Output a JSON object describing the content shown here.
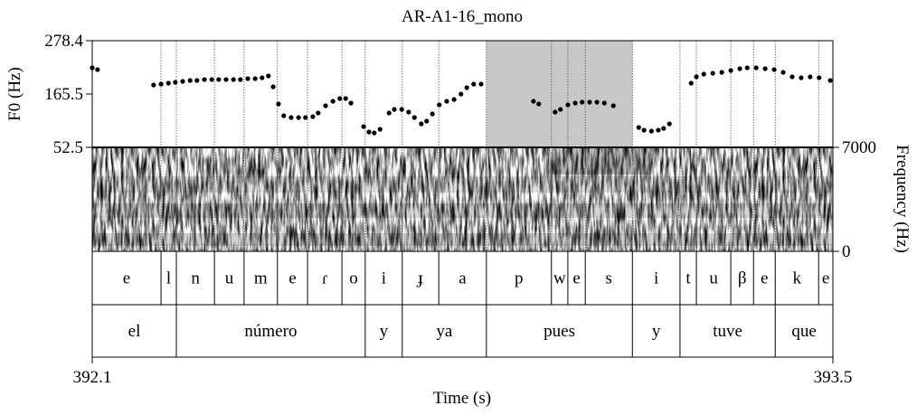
{
  "chart_data": {
    "type": "scatter",
    "title": "AR-A1-16_mono",
    "ylabel": "F0 (Hz)",
    "y2label": "Frequency (Hz)",
    "xlabel": "Time (s)",
    "xlim": [
      392.1,
      393.5
    ],
    "xticks": [
      392.1,
      393.5
    ],
    "ylim": [
      52.5,
      278.4
    ],
    "yticks": [
      52.5,
      165.5,
      278.4
    ],
    "y2lim": [
      0,
      7000
    ],
    "y2ticks": [
      0,
      7000
    ],
    "color": "#000000",
    "highlight": [
      392.845,
      393.121
    ],
    "x": [
      392.1,
      392.11,
      392.216,
      392.23,
      392.244,
      392.257,
      392.271,
      392.285,
      392.298,
      392.312,
      392.326,
      392.339,
      392.353,
      392.367,
      392.38,
      392.394,
      392.408,
      392.421,
      392.433,
      392.442,
      392.452,
      392.462,
      392.476,
      392.49,
      392.503,
      392.517,
      392.527,
      392.541,
      392.555,
      392.568,
      392.579,
      392.589,
      392.613,
      392.623,
      392.633,
      392.644,
      392.661,
      392.671,
      392.685,
      392.698,
      392.709,
      392.722,
      392.732,
      392.743,
      392.756,
      392.77,
      392.784,
      392.797,
      392.808,
      392.821,
      392.835,
      392.934,
      392.944,
      392.975,
      392.985,
      392.999,
      393.013,
      393.026,
      393.04,
      393.054,
      393.068,
      393.085,
      393.133,
      393.143,
      393.157,
      393.17,
      393.18,
      393.191,
      393.232,
      393.242,
      393.256,
      393.273,
      393.29,
      393.307,
      393.324,
      393.338,
      393.355,
      393.372,
      393.389,
      393.406,
      393.423,
      393.44,
      393.457,
      393.474,
      393.495
    ],
    "values": [
      221.0,
      217.1,
      184.6,
      186.5,
      188.4,
      190.3,
      192.3,
      194.2,
      194.2,
      196.1,
      196.1,
      196.1,
      196.1,
      196.1,
      196.1,
      198.0,
      198.0,
      199.9,
      203.7,
      180.8,
      144.4,
      119.5,
      115.7,
      115.7,
      115.7,
      117.6,
      125.2,
      140.6,
      150.1,
      155.9,
      155.9,
      146.3,
      96.5,
      85.0,
      83.1,
      90.8,
      125.2,
      132.9,
      132.9,
      127.2,
      115.7,
      102.3,
      108.0,
      123.3,
      142.5,
      150.1,
      154.0,
      165.4,
      178.9,
      186.5,
      186.5,
      150.1,
      144.4,
      127.2,
      132.9,
      142.5,
      146.3,
      148.2,
      148.2,
      148.2,
      146.3,
      140.6,
      94.6,
      88.9,
      87.0,
      88.9,
      92.7,
      102.3,
      188.4,
      201.8,
      207.6,
      209.5,
      211.4,
      215.2,
      219.1,
      221.0,
      221.0,
      219.1,
      217.1,
      211.4,
      201.8,
      199.9,
      201.8,
      199.9,
      194.2
    ],
    "tiers": [
      {
        "labels": [
          "e",
          "l",
          "n",
          "u",
          "m",
          "e",
          "ɾ",
          "o",
          "i",
          "ɟ",
          "a",
          "p",
          "w",
          "e",
          "s",
          "i",
          "t",
          "u",
          "β",
          "e",
          "k",
          "e"
        ],
        "boundaries": [
          392.1,
          392.23,
          392.259,
          392.331,
          392.387,
          392.45,
          392.507,
          392.572,
          392.616,
          392.686,
          392.755,
          392.845,
          392.968,
          392.999,
          393.032,
          393.121,
          393.211,
          393.242,
          393.307,
          393.35,
          393.391,
          393.473,
          393.5
        ]
      },
      {
        "labels": [
          "el",
          "número",
          "y",
          "ya",
          "pues",
          "y",
          "tuve",
          "que"
        ],
        "boundaries": [
          392.1,
          392.259,
          392.616,
          392.686,
          392.845,
          393.121,
          393.211,
          393.391,
          393.5
        ]
      }
    ]
  }
}
